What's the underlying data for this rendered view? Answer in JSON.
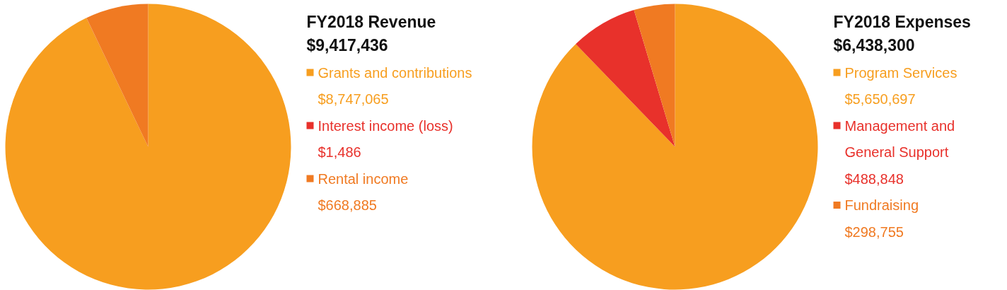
{
  "chart_data": [
    {
      "type": "pie",
      "title": "FY2018 Revenue",
      "subtitle": "$9,417,436",
      "categories": [
        "Grants and contributions",
        "Interest income (loss)",
        "Rental income"
      ],
      "values": [
        8747065,
        1486,
        668885
      ],
      "value_labels": [
        "$8,747,065",
        "$1,486",
        "$668,885"
      ],
      "colors": [
        "#f79e1f",
        "#e8312b",
        "#f07a22"
      ],
      "legend": "right"
    },
    {
      "type": "pie",
      "title": "FY2018 Expenses",
      "subtitle": "$6,438,300",
      "categories": [
        "Program Services",
        "Management and General Support",
        "Fundraising"
      ],
      "values": [
        5650697,
        488848,
        298755
      ],
      "value_labels": [
        "$5,650,697",
        "$488,848",
        "$298,755"
      ],
      "colors": [
        "#f79e1f",
        "#e8312b",
        "#f07a22"
      ],
      "legend": "right"
    }
  ]
}
